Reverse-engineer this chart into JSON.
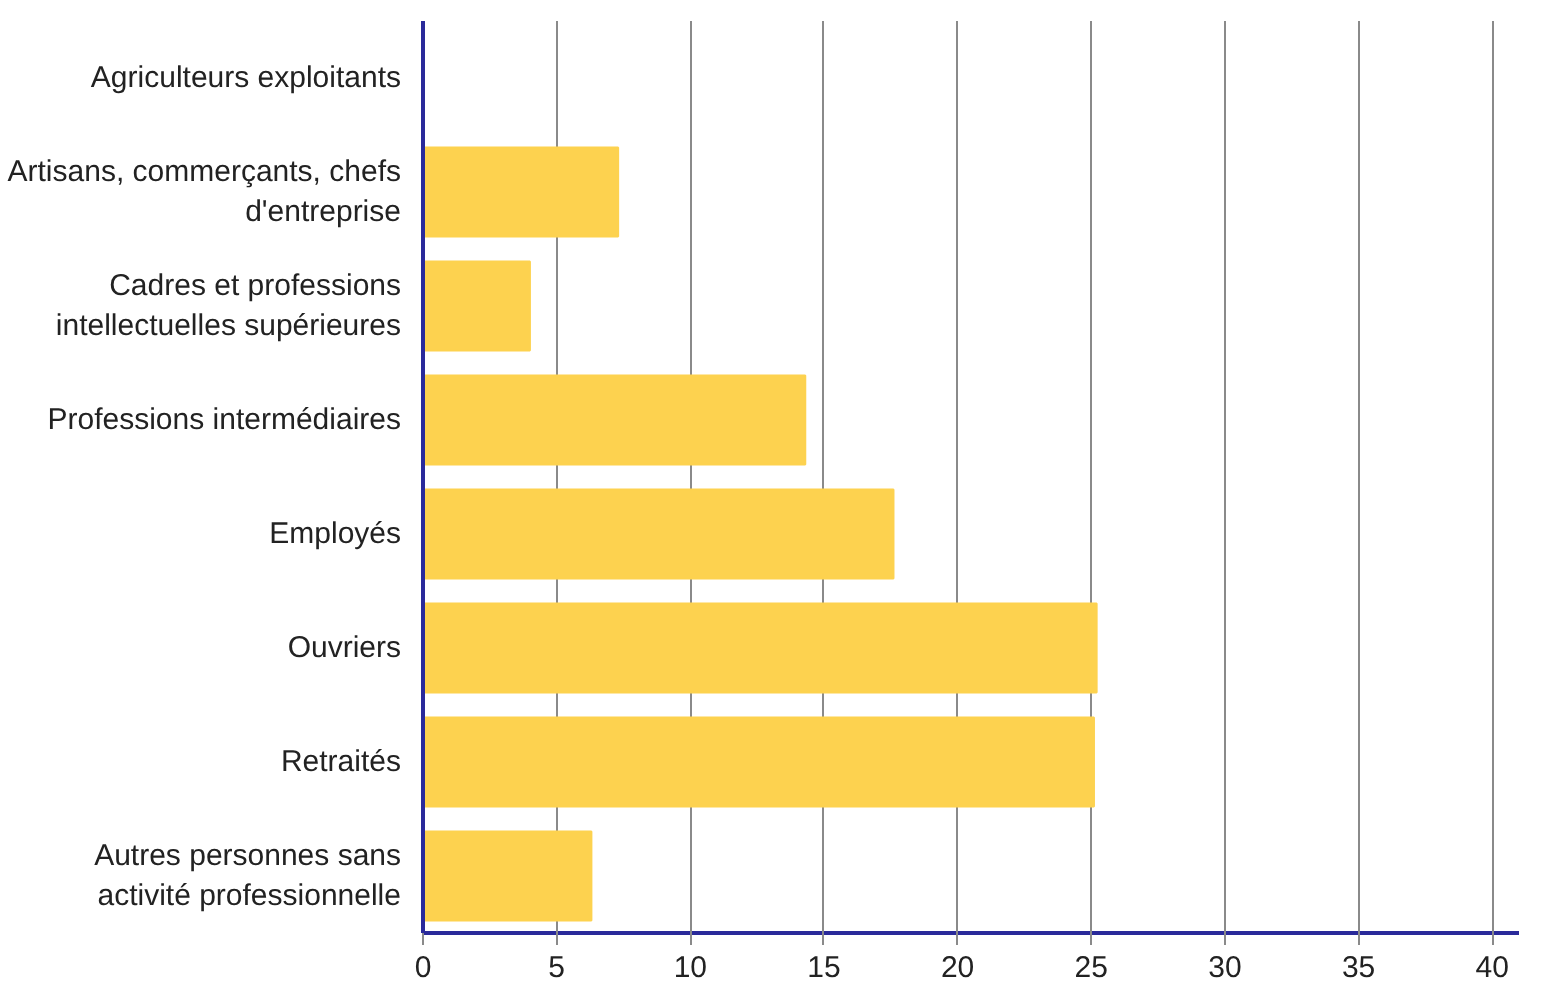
{
  "chart_data": {
    "type": "bar",
    "orientation": "horizontal",
    "categories": [
      "Agriculteurs exploitants",
      "Artisans, commerçants, chefs d'entreprise",
      "Cadres et professions intellectuelles supérieures",
      "Professions intermédiaires",
      "Employés",
      "Ouvriers",
      "Retraités",
      "Autres personnes sans activité professionnelle"
    ],
    "values": [
      0,
      7.3,
      4.0,
      14.3,
      17.6,
      25.2,
      25.1,
      6.3
    ],
    "color": "#fdd24f",
    "xlim": [
      0,
      41
    ],
    "xticks": [
      0,
      5,
      10,
      15,
      20,
      25,
      30,
      35,
      40
    ],
    "grid": "x"
  }
}
